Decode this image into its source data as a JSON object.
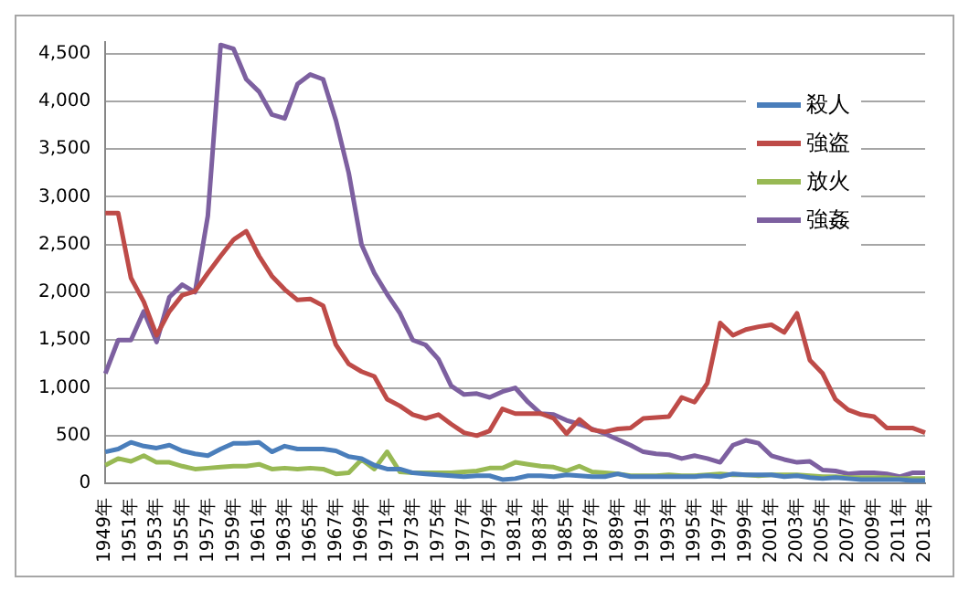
{
  "chart_data": {
    "type": "line",
    "categories": [
      "1949年",
      null,
      "1951年",
      null,
      "1953年",
      null,
      "1955年",
      null,
      "1957年",
      null,
      "1959年",
      null,
      "1961年",
      null,
      "1963年",
      null,
      "1965年",
      null,
      "1967年",
      null,
      "1969年",
      null,
      "1971年",
      null,
      "1973年",
      null,
      "1975年",
      null,
      "1977年",
      null,
      "1979年",
      null,
      "1981年",
      null,
      "1983年",
      null,
      "1985年",
      null,
      "1987年",
      null,
      "1989年",
      null,
      "1991年",
      null,
      "1993年",
      null,
      "1995年",
      null,
      "1997年",
      null,
      "1999年",
      null,
      "2001年",
      null,
      "2003年",
      null,
      "2005年",
      null,
      "2007年",
      null,
      "2009年",
      null,
      "2011年",
      null,
      "2013年"
    ],
    "series": [
      {
        "name": "殺人",
        "color": "#4a7ebb",
        "values": [
          330,
          360,
          430,
          390,
          370,
          400,
          340,
          310,
          290,
          360,
          420,
          420,
          430,
          330,
          390,
          360,
          360,
          360,
          340,
          280,
          260,
          190,
          150,
          150,
          110,
          100,
          90,
          80,
          70,
          80,
          80,
          40,
          50,
          80,
          80,
          70,
          90,
          80,
          70,
          70,
          100,
          70,
          70,
          70,
          70,
          70,
          70,
          80,
          70,
          100,
          90,
          90,
          90,
          70,
          80,
          60,
          50,
          60,
          50,
          40,
          40,
          40,
          40,
          30,
          30
        ]
      },
      {
        "name": "強盗",
        "color": "#be4b48",
        "values": [
          2830,
          2830,
          2150,
          1900,
          1550,
          1800,
          1970,
          2010,
          2200,
          2380,
          2550,
          2640,
          2380,
          2170,
          2030,
          1920,
          1930,
          1860,
          1450,
          1250,
          1170,
          1120,
          880,
          810,
          720,
          680,
          720,
          620,
          530,
          500,
          550,
          780,
          730,
          730,
          730,
          680,
          520,
          670,
          560,
          540,
          570,
          580,
          680,
          690,
          700,
          900,
          850,
          1050,
          1680,
          1550,
          1610,
          1640,
          1660,
          1580,
          1780,
          1290,
          1150,
          880,
          770,
          720,
          700,
          580,
          580,
          580,
          530
        ]
      },
      {
        "name": "放火",
        "color": "#98b954",
        "values": [
          190,
          260,
          230,
          290,
          220,
          220,
          180,
          150,
          160,
          170,
          180,
          180,
          200,
          150,
          160,
          150,
          160,
          150,
          100,
          110,
          250,
          150,
          330,
          120,
          110,
          110,
          110,
          110,
          120,
          130,
          160,
          160,
          220,
          200,
          180,
          170,
          130,
          180,
          120,
          110,
          100,
          80,
          80,
          80,
          90,
          80,
          80,
          90,
          100,
          90,
          90,
          80,
          90,
          90,
          90,
          80,
          70,
          70,
          60,
          60,
          60,
          60,
          50,
          50,
          50
        ]
      },
      {
        "name": "強姦",
        "color": "#7d60a0",
        "values": [
          1150,
          1500,
          1500,
          1800,
          1480,
          1950,
          2080,
          2000,
          2800,
          4590,
          4550,
          4230,
          4100,
          3860,
          3820,
          4180,
          4280,
          4230,
          3800,
          3250,
          2500,
          2200,
          1980,
          1780,
          1500,
          1450,
          1300,
          1020,
          930,
          940,
          900,
          960,
          1000,
          850,
          730,
          720,
          660,
          620,
          570,
          520,
          460,
          400,
          330,
          310,
          300,
          260,
          290,
          260,
          220,
          400,
          450,
          420,
          290,
          250,
          220,
          230,
          140,
          130,
          100,
          110,
          110,
          100,
          70,
          110,
          110
        ]
      }
    ],
    "ylim": [
      0,
      4620
    ],
    "yticks": [
      0,
      {
        "value": 500,
        "label": "500"
      },
      {
        "value": 1000,
        "label": "1,000"
      },
      {
        "value": 1500,
        "label": "1,500"
      },
      {
        "value": 2000,
        "label": "2,000"
      },
      {
        "value": 2500,
        "label": "2,500"
      },
      {
        "value": 3000,
        "label": "3,000"
      },
      {
        "value": 3500,
        "label": "3,500"
      },
      {
        "value": 4000,
        "label": "4,000"
      },
      {
        "value": 4500,
        "label": "4,500"
      }
    ],
    "grid": "y",
    "legend": "top right",
    "marker": "none",
    "line_style": "solid"
  }
}
